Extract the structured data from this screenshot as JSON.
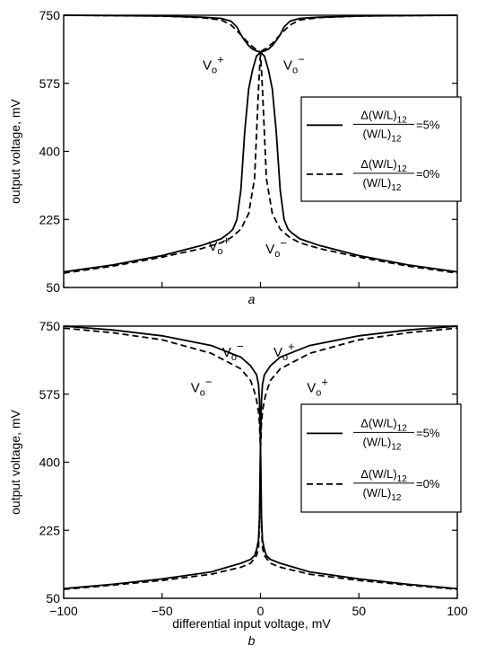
{
  "chart_data": [
    {
      "type": "line",
      "panel_label": "a",
      "xlabel": "",
      "ylabel": "output voltage, mV",
      "xlim": [
        -100,
        100
      ],
      "ylim": [
        50,
        750
      ],
      "yticks": [
        "50",
        "225",
        "400",
        "575",
        "750"
      ],
      "xticks": [],
      "grid": false,
      "legend_placement": "right",
      "legend": {
        "entries": [
          {
            "style": "solid",
            "num": "Δ(W/L)",
            "num_sub": "12",
            "den": "(W/L)",
            "den_sub": "12",
            "value": "=5%"
          },
          {
            "style": "dashed",
            "num": "Δ(W/L)",
            "num_sub": "12",
            "den": "(W/L)",
            "den_sub": "12",
            "value": "=0%"
          }
        ]
      },
      "annotations": [
        {
          "base": "V",
          "sub": "o",
          "sup": "+",
          "x": -24,
          "y": 610
        },
        {
          "base": "V",
          "sub": "o",
          "sup": "−",
          "x": 17,
          "y": 610
        },
        {
          "base": "V",
          "sub": "o",
          "sup": "+",
          "x": -21,
          "y": 145
        },
        {
          "base": "V",
          "sub": "o",
          "sup": "−",
          "x": 8,
          "y": 138
        }
      ],
      "series": [
        {
          "style": "solid",
          "x": [
            -100,
            -75,
            -50,
            -30,
            -20,
            -15,
            -12,
            -10,
            -8,
            -6,
            -4,
            -2,
            0,
            2,
            4,
            6,
            8,
            10,
            12,
            14,
            16,
            20,
            30,
            50,
            75,
            100
          ],
          "y": [
            750,
            749,
            748,
            745,
            742,
            735,
            720,
            700,
            685,
            672,
            663,
            658,
            655,
            645,
            610,
            560,
            450,
            300,
            225,
            200,
            190,
            175,
            158,
            132,
            108,
            90
          ]
        },
        {
          "style": "solid",
          "x": [
            -100,
            -75,
            -50,
            -30,
            -20,
            -16,
            -14,
            -12,
            -10,
            -8,
            -6,
            -4,
            -2,
            0,
            2,
            4,
            6,
            8,
            10,
            12,
            15,
            20,
            30,
            50,
            75,
            100
          ],
          "y": [
            90,
            108,
            132,
            158,
            175,
            190,
            200,
            225,
            300,
            450,
            560,
            610,
            645,
            655,
            658,
            663,
            672,
            685,
            700,
            720,
            735,
            742,
            745,
            748,
            749,
            750
          ]
        },
        {
          "style": "dashed",
          "x": [
            -100,
            -75,
            -50,
            -30,
            -20,
            -15,
            -10,
            -6,
            -3,
            -1,
            0,
            1,
            3,
            6,
            10,
            15,
            20,
            30,
            50,
            75,
            100
          ],
          "y": [
            750,
            749,
            748,
            744,
            738,
            725,
            700,
            678,
            665,
            660,
            655,
            560,
            330,
            240,
            200,
            178,
            165,
            150,
            128,
            105,
            87
          ]
        },
        {
          "style": "dashed",
          "x": [
            -100,
            -75,
            -50,
            -30,
            -20,
            -15,
            -10,
            -6,
            -3,
            -1,
            0,
            1,
            3,
            6,
            10,
            15,
            20,
            30,
            50,
            75,
            100
          ],
          "y": [
            87,
            105,
            128,
            150,
            165,
            178,
            200,
            240,
            330,
            560,
            655,
            660,
            665,
            678,
            700,
            725,
            738,
            744,
            748,
            749,
            750
          ]
        }
      ]
    },
    {
      "type": "line",
      "panel_label": "b",
      "xlabel": "differential input voltage, mV",
      "ylabel": "output voltage, mV",
      "xlim": [
        -100,
        100
      ],
      "ylim": [
        50,
        750
      ],
      "yticks": [
        "50",
        "225",
        "400",
        "575",
        "750"
      ],
      "xticks": [
        "−100",
        "−50",
        "0",
        "50",
        "100"
      ],
      "xtick_values": [
        -100,
        -50,
        0,
        50,
        100
      ],
      "grid": false,
      "legend_placement": "right",
      "legend": {
        "entries": [
          {
            "style": "solid",
            "num": "Δ(W/L)",
            "num_sub": "12",
            "den": "(W/L)",
            "den_sub": "12",
            "value": "=5%"
          },
          {
            "style": "dashed",
            "num": "Δ(W/L)",
            "num_sub": "12",
            "den": "(W/L)",
            "den_sub": "12",
            "value": "=0%"
          }
        ]
      },
      "annotations": [
        {
          "base": "V",
          "sub": "o",
          "sup": "−",
          "x": -14,
          "y": 672
        },
        {
          "base": "V",
          "sub": "o",
          "sup": "+",
          "x": 12,
          "y": 672
        },
        {
          "base": "V",
          "sub": "o",
          "sup": "−",
          "x": -30,
          "y": 580
        },
        {
          "base": "V",
          "sub": "o",
          "sup": "+",
          "x": 29,
          "y": 580
        }
      ],
      "series": [
        {
          "style": "solid",
          "x": [
            -100,
            -75,
            -50,
            -25,
            -10,
            -5,
            -2,
            -1,
            -0.5,
            0,
            0.5,
            1,
            2,
            3,
            5,
            10,
            25,
            50,
            75,
            100
          ],
          "y": [
            750,
            740,
            725,
            700,
            670,
            648,
            625,
            600,
            560,
            450,
            260,
            200,
            175,
            160,
            150,
            140,
            118,
            100,
            86,
            75
          ]
        },
        {
          "style": "solid",
          "x": [
            -100,
            -75,
            -50,
            -25,
            -10,
            -5,
            -3,
            -2,
            -1,
            -0.5,
            0,
            0.5,
            1,
            2,
            5,
            10,
            25,
            50,
            75,
            100
          ],
          "y": [
            75,
            86,
            100,
            118,
            140,
            150,
            160,
            175,
            200,
            260,
            450,
            560,
            600,
            625,
            648,
            670,
            700,
            725,
            740,
            750
          ]
        },
        {
          "style": "dashed",
          "x": [
            -100,
            -75,
            -50,
            -25,
            -10,
            -5,
            -3,
            -2,
            -1,
            -0.5,
            0,
            0.5,
            1,
            2,
            5,
            10,
            25,
            50,
            75,
            100
          ],
          "y": [
            745,
            733,
            715,
            680,
            640,
            610,
            580,
            560,
            530,
            500,
            430,
            240,
            180,
            160,
            140,
            130,
            112,
            96,
            84,
            73
          ]
        },
        {
          "style": "dashed",
          "x": [
            -100,
            -75,
            -50,
            -25,
            -10,
            -5,
            -2,
            -1,
            -0.5,
            0,
            0.5,
            1,
            2,
            3,
            5,
            10,
            25,
            50,
            75,
            100
          ],
          "y": [
            73,
            84,
            96,
            112,
            130,
            140,
            160,
            180,
            240,
            430,
            500,
            530,
            560,
            580,
            610,
            640,
            680,
            715,
            733,
            745
          ]
        }
      ]
    }
  ]
}
